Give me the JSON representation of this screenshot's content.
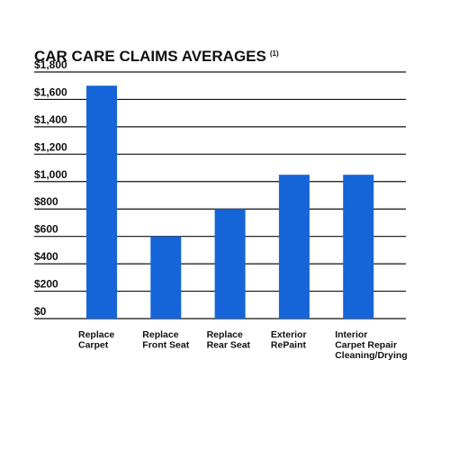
{
  "chart_data": {
    "type": "bar",
    "title": "CAR CARE CLAIMS AVERAGES",
    "title_footnote": "(1)",
    "categories": [
      [
        "Replace",
        "Carpet"
      ],
      [
        "Replace",
        "Front Seat"
      ],
      [
        "Replace",
        "Rear Seat"
      ],
      [
        "Exterior",
        "RePaint"
      ],
      [
        "Interior",
        "Carpet Repair",
        "Cleaning/Drying"
      ]
    ],
    "values": [
      1700,
      600,
      800,
      1050,
      1050
    ],
    "ylim": [
      0,
      1800
    ],
    "yticks": [
      0,
      200,
      400,
      600,
      800,
      1000,
      1200,
      1400,
      1600,
      1800
    ],
    "ytick_labels": [
      "$0",
      "$200",
      "$400",
      "$600",
      "$800",
      "$1,000",
      "$1,200",
      "$1,400",
      "$1,600",
      "$1,800"
    ],
    "grid": true,
    "xlabel": "",
    "ylabel": "",
    "bar_color": "#1565d8"
  }
}
